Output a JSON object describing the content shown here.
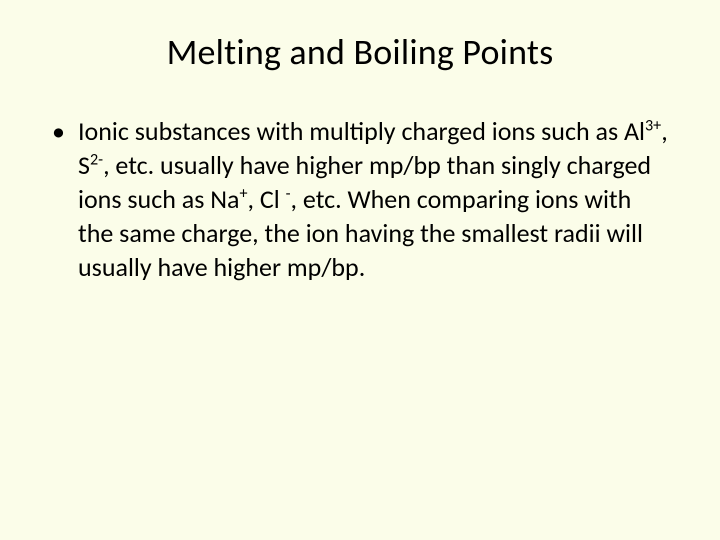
{
  "slide": {
    "background_color": "#fbfde9",
    "text_color": "#000000",
    "font_family": "Calibri",
    "title": {
      "text": "Melting and Boiling Points",
      "fontsize": 36,
      "align": "center"
    },
    "bullet": {
      "marker": "•",
      "fontsize": 26,
      "line_height": 34,
      "segments": {
        "s1": "Ionic substances with multiply charged ions such as Al",
        "sup1": "3+",
        "s2": ", S",
        "sup2": "2-",
        "s3": ", etc. usually have higher mp/bp than singly charged ions such as Na",
        "sup3": "+",
        "s4": ", Cl ",
        "sup4": "-",
        "s5": ", etc.  When comparing ions with the same charge, the ion having the smallest radii will usually have higher mp/bp."
      }
    }
  }
}
